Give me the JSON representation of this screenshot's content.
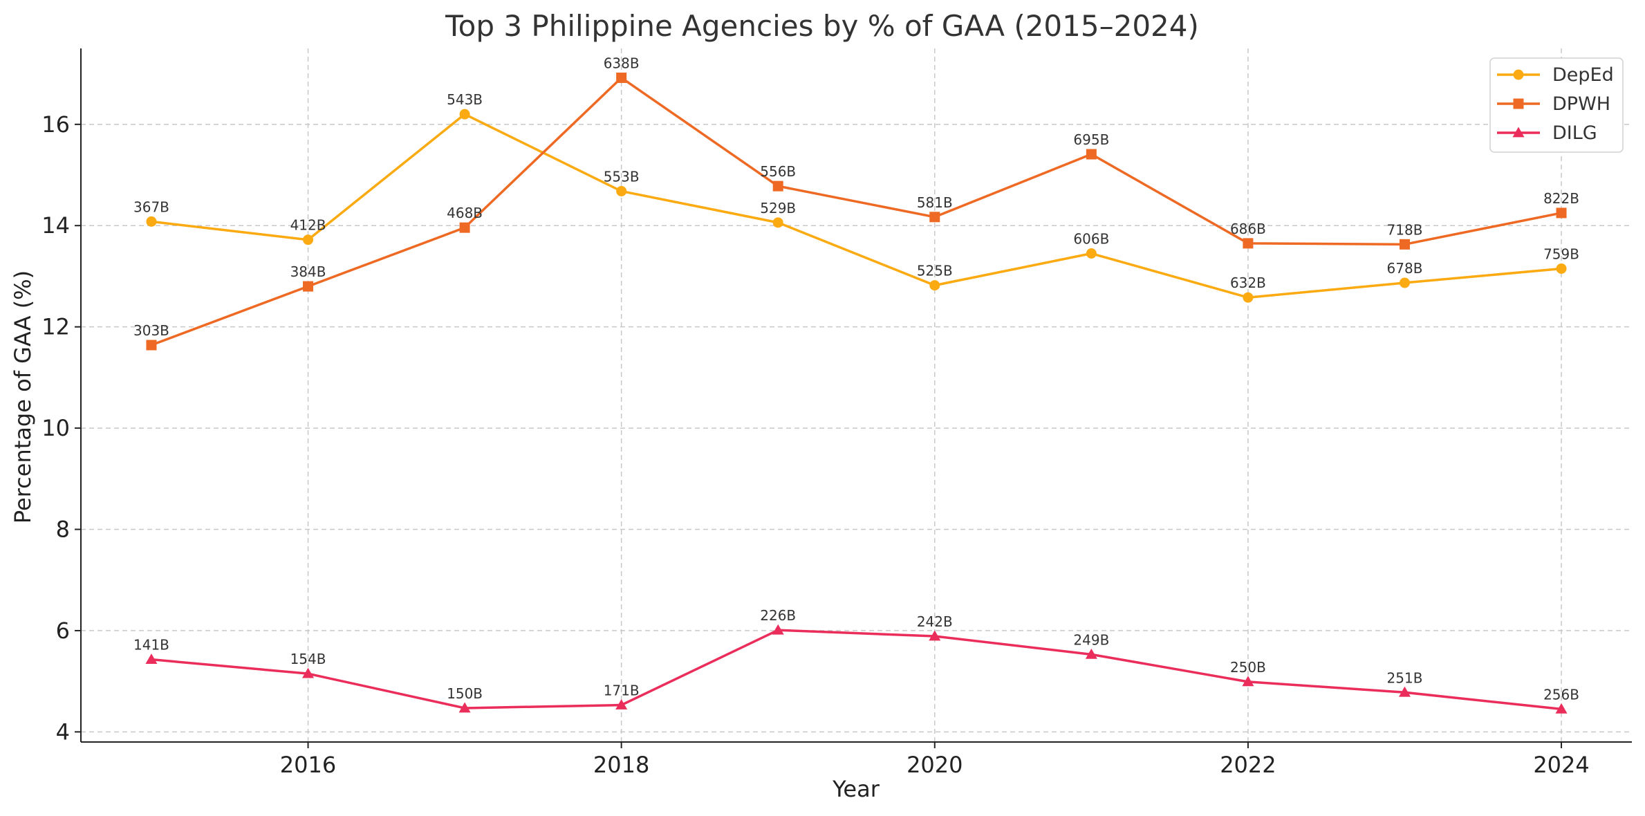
{
  "chart_data": {
    "type": "line",
    "title": "Top 3 Philippine Agencies by % of GAA (2015–2024)",
    "xlabel": "Year",
    "ylabel": "Percentage of GAA (%)",
    "x": [
      2015,
      2016,
      2017,
      2018,
      2019,
      2020,
      2021,
      2022,
      2023,
      2024
    ],
    "x_ticks": [
      2016,
      2018,
      2020,
      2022,
      2024
    ],
    "y_ticks": [
      4,
      6,
      8,
      10,
      12,
      14,
      16
    ],
    "xlim": [
      2014.55,
      2024.45
    ],
    "ylim": [
      3.8,
      17.5
    ],
    "grid": true,
    "legend_position": "top-right",
    "series": [
      {
        "name": "DepEd",
        "color": "#FBAA12",
        "marker": "circle",
        "values": [
          14.08,
          13.72,
          16.2,
          14.68,
          14.06,
          12.82,
          13.45,
          12.58,
          12.87,
          13.15
        ],
        "labels": [
          "367B",
          "412B",
          "543B",
          "553B",
          "529B",
          "525B",
          "606B",
          "632B",
          "678B",
          "759B"
        ]
      },
      {
        "name": "DPWH",
        "color": "#EE6A24",
        "marker": "square",
        "values": [
          11.64,
          12.8,
          13.96,
          16.92,
          14.78,
          14.17,
          15.41,
          13.65,
          13.63,
          14.25
        ],
        "labels": [
          "303B",
          "384B",
          "468B",
          "638B",
          "556B",
          "581B",
          "695B",
          "686B",
          "718B",
          "822B"
        ]
      },
      {
        "name": "DILG",
        "color": "#EA2D5A",
        "marker": "triangle",
        "values": [
          5.43,
          5.15,
          4.47,
          4.53,
          6.01,
          5.89,
          5.53,
          4.99,
          4.78,
          4.45
        ],
        "labels": [
          "141B",
          "154B",
          "150B",
          "171B",
          "226B",
          "242B",
          "249B",
          "250B",
          "251B",
          "256B"
        ]
      }
    ]
  }
}
